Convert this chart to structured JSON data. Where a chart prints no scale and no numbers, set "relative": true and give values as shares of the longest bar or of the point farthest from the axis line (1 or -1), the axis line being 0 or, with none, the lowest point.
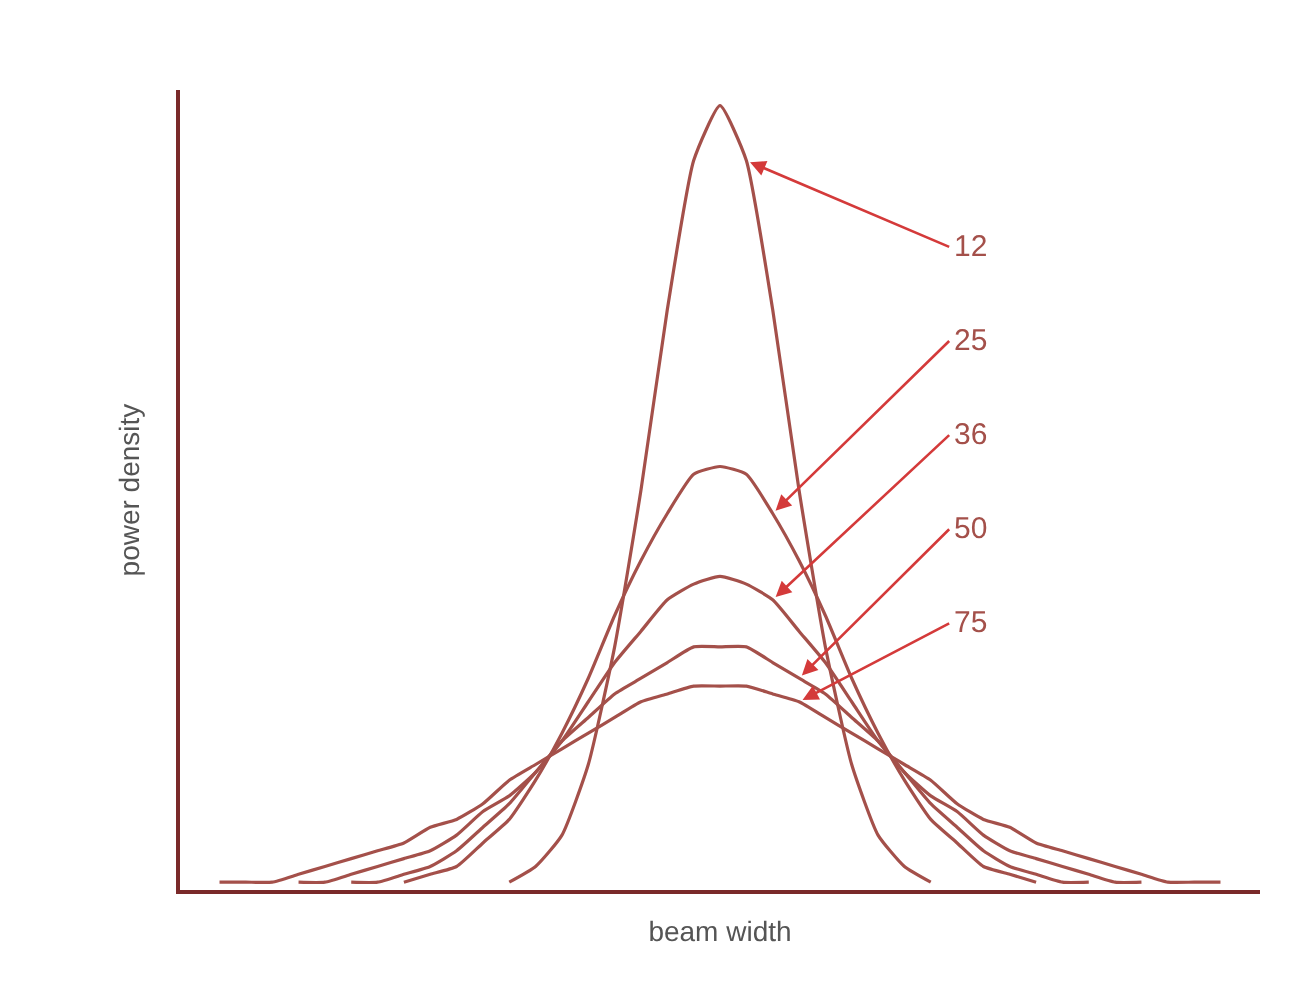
{
  "chart_data": {
    "type": "line",
    "relative": true,
    "xlabel": "beam width",
    "ylabel": "power density",
    "legend": false,
    "categories": [
      null,
      null,
      null,
      null,
      null,
      null,
      null,
      null,
      null,
      null,
      null,
      null,
      null,
      null,
      null,
      null,
      null,
      null,
      null,
      null,
      null,
      null,
      null,
      null,
      null,
      null,
      null,
      null,
      null,
      null,
      null,
      null,
      null,
      null,
      null,
      null,
      null,
      null,
      null,
      null,
      null
    ],
    "series": [
      {
        "name": "12",
        "color": "#a4504a",
        "values": [
          null,
          null,
          null,
          null,
          null,
          null,
          null,
          null,
          null,
          null,
          null,
          null,
          0.01,
          0.03,
          0.07,
          0.16,
          0.31,
          0.51,
          0.74,
          0.93,
          1,
          0.93,
          0.74,
          0.51,
          0.31,
          0.16,
          0.07,
          0.03,
          0.01,
          null,
          null,
          null,
          null,
          null,
          null,
          null,
          null,
          null,
          null,
          null,
          null
        ]
      },
      {
        "name": "25",
        "color": "#a4504a",
        "values": [
          null,
          null,
          null,
          null,
          null,
          null,
          null,
          null,
          0.01,
          0.02,
          0.03,
          0.06,
          0.09,
          0.14,
          0.2,
          0.27,
          0.35,
          0.42,
          0.48,
          0.53,
          0.54,
          0.53,
          0.48,
          0.42,
          0.35,
          0.27,
          0.2,
          0.14,
          0.09,
          0.06,
          0.03,
          0.02,
          0.01,
          null,
          null,
          null,
          null,
          null,
          null,
          null,
          null
        ]
      },
      {
        "name": "36",
        "color": "#a4504a",
        "values": [
          null,
          null,
          null,
          null,
          null,
          null,
          0.01,
          0.01,
          0.02,
          0.03,
          0.05,
          0.08,
          0.11,
          0.15,
          0.19,
          0.24,
          0.29,
          0.33,
          0.37,
          0.39,
          0.4,
          0.39,
          0.37,
          0.33,
          0.29,
          0.24,
          0.19,
          0.15,
          0.11,
          0.08,
          0.05,
          0.03,
          0.02,
          0.01,
          0.01,
          null,
          null,
          null,
          null,
          null,
          null
        ]
      },
      {
        "name": "50",
        "color": "#a4504a",
        "values": [
          null,
          null,
          null,
          null,
          0.01,
          0.01,
          0.02,
          0.03,
          0.04,
          0.05,
          0.07,
          0.1,
          0.12,
          0.15,
          0.19,
          0.22,
          0.25,
          0.27,
          0.29,
          0.31,
          0.31,
          0.31,
          0.29,
          0.27,
          0.25,
          0.22,
          0.19,
          0.15,
          0.12,
          0.1,
          0.07,
          0.05,
          0.04,
          0.03,
          0.02,
          0.01,
          0.01,
          null,
          null,
          null,
          null
        ]
      },
      {
        "name": "75",
        "color": "#a4504a",
        "values": [
          null,
          0.01,
          0.01,
          0.01,
          0.02,
          0.03,
          0.04,
          0.05,
          0.06,
          0.08,
          0.09,
          0.11,
          0.14,
          0.16,
          0.18,
          0.2,
          0.22,
          0.24,
          0.25,
          0.26,
          0.26,
          0.26,
          0.25,
          0.24,
          0.22,
          0.2,
          0.18,
          0.16,
          0.14,
          0.11,
          0.09,
          0.08,
          0.06,
          0.05,
          0.04,
          0.03,
          0.02,
          0.01,
          0.01,
          0.01,
          null
        ]
      }
    ]
  }
}
